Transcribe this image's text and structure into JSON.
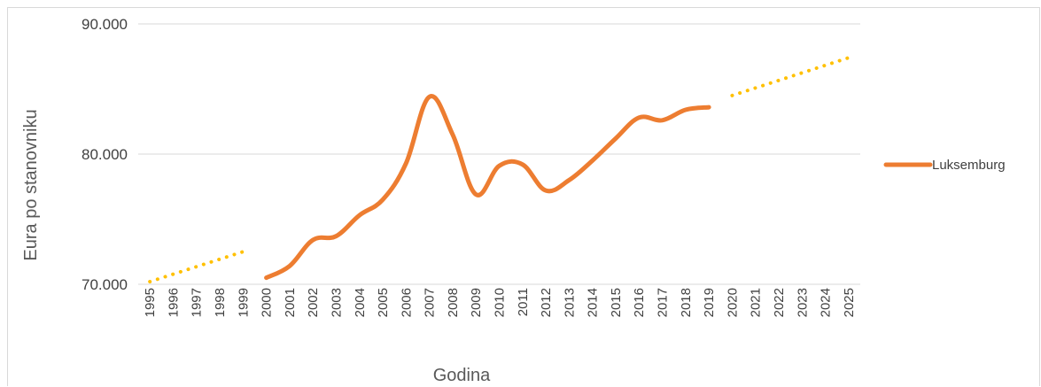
{
  "chart_data": {
    "type": "line",
    "xlabel": "Godina",
    "ylabel": "Eura po stanovniku",
    "ylim": [
      70000,
      90000
    ],
    "yticks": [
      70000,
      80000,
      90000
    ],
    "ytick_labels": [
      "70.000",
      "80.000",
      "90.000"
    ],
    "categories": [
      "1995",
      "1996",
      "1997",
      "1998",
      "1999",
      "2000",
      "2001",
      "2002",
      "2003",
      "2004",
      "2005",
      "2006",
      "2007",
      "2008",
      "2009",
      "2010",
      "2011",
      "2012",
      "2013",
      "2014",
      "2015",
      "2016",
      "2017",
      "2018",
      "2019",
      "2020",
      "2021",
      "2022",
      "2023",
      "2024",
      "2025"
    ],
    "grid": true,
    "legend_position": "right",
    "series": [
      {
        "name": "Luksemburg",
        "color": "#ed7d31",
        "style": "solid",
        "x": [
          "2000",
          "2001",
          "2002",
          "2003",
          "2004",
          "2005",
          "2006",
          "2007",
          "2008",
          "2009",
          "2010",
          "2011",
          "2012",
          "2013",
          "2014",
          "2015",
          "2016",
          "2017",
          "2018",
          "2019"
        ],
        "values": [
          70500,
          71400,
          73400,
          73700,
          75300,
          76500,
          79300,
          84400,
          81500,
          76900,
          79100,
          79200,
          77200,
          78000,
          79500,
          81200,
          82800,
          82600,
          83400,
          83600
        ]
      },
      {
        "name": "",
        "color": "#ffc000",
        "style": "dotted",
        "x": [
          "1995",
          "1999"
        ],
        "values": [
          70200,
          72500
        ]
      },
      {
        "name": "",
        "color": "#ffc000",
        "style": "dotted",
        "x": [
          "2020",
          "2025"
        ],
        "values": [
          84500,
          87400
        ]
      }
    ]
  }
}
